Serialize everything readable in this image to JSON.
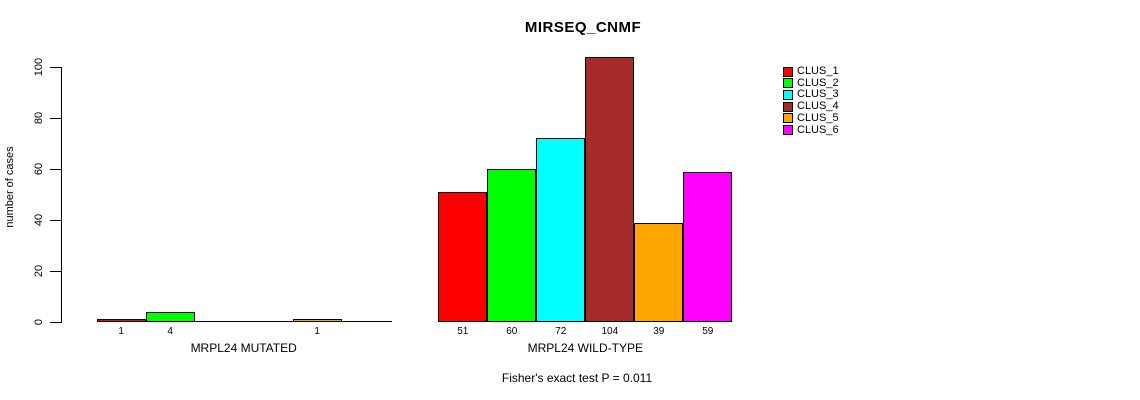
{
  "title": "MIRSEQ_CNMF",
  "annotation": "Fisher's exact test P = 0.011",
  "chart_data": {
    "type": "bar",
    "title": "MIRSEQ_CNMF",
    "ylabel": "number of cases",
    "xlabel": "",
    "ylim": [
      0,
      100
    ],
    "yticks": [
      0,
      20,
      40,
      60,
      80,
      100
    ],
    "grid": false,
    "legend_position": "top-right",
    "series": [
      "CLUS_1",
      "CLUS_2",
      "CLUS_3",
      "CLUS_4",
      "CLUS_5",
      "CLUS_6"
    ],
    "series_colors": [
      "#FF0000",
      "#00FF00",
      "#00FFFF",
      "#A52A2A",
      "#FFA500",
      "#FF00FF"
    ],
    "groups": [
      {
        "label": "MRPL24 MUTATED",
        "values": [
          1,
          4,
          0,
          0,
          1,
          0
        ],
        "value_labels": [
          "1",
          "4",
          "",
          "",
          "1",
          ""
        ]
      },
      {
        "label": "MRPL24 WILD-TYPE",
        "values": [
          51,
          60,
          72,
          104,
          39,
          59
        ],
        "value_labels": [
          "51",
          "60",
          "72",
          "104",
          "39",
          "59"
        ]
      }
    ],
    "annotation": "Fisher's exact test P = 0.011"
  }
}
